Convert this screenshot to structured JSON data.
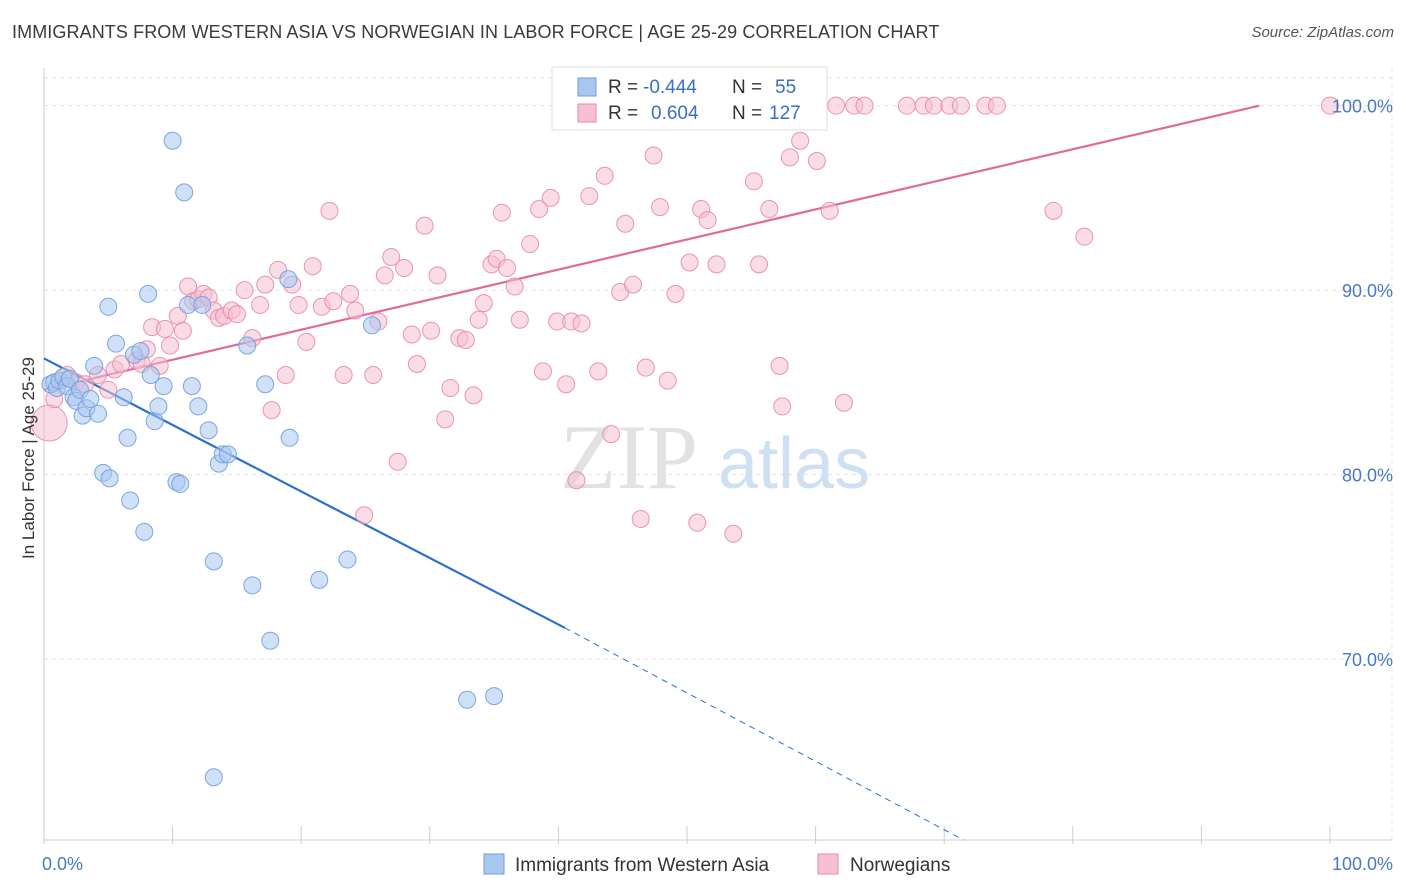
{
  "title": "IMMIGRANTS FROM WESTERN ASIA VS NORWEGIAN IN LABOR FORCE | AGE 25-29 CORRELATION CHART",
  "source": "Source: ZipAtlas.com",
  "watermark": {
    "zip": "ZIP",
    "atlas": "atlas"
  },
  "colors": {
    "blue_fill": "#a9c6ee",
    "blue_stroke": "#6f9fdc",
    "blue_line": "#2b6fd1",
    "pink_fill": "#f6c0d2",
    "pink_stroke": "#e88aab",
    "pink_line": "#e06b98",
    "grid": "#e3e3e3",
    "tick_text": "#4a78c2"
  },
  "chart_data": {
    "type": "scatter",
    "title": "IMMIGRANTS FROM WESTERN ASIA VS NORWEGIAN IN LABOR FORCE | AGE 25-29 CORRELATION CHART",
    "xlabel": "",
    "ylabel": "In Labor Force | Age 25-29",
    "xlim": [
      0,
      100
    ],
    "ylim": [
      60.2,
      101.5
    ],
    "x_ticks": [
      {
        "value": 0,
        "label": "0.0%"
      },
      {
        "value": 100,
        "label": "100.0%"
      }
    ],
    "y_ticks": [
      {
        "value": 70,
        "label": "70.0%"
      },
      {
        "value": 80,
        "label": "80.0%"
      },
      {
        "value": 90,
        "label": "90.0%"
      },
      {
        "value": 100,
        "label": "100.0%"
      }
    ],
    "grid": true,
    "legend_placement": "top-center",
    "legend": [
      {
        "series": "Immigrants from Western Asia",
        "r_label": "R =",
        "r_value": "-0.444",
        "n_label": "N =",
        "n_value": "55"
      },
      {
        "series": "Norwegians",
        "r_label": "R =",
        "r_value": "0.604",
        "n_label": "N =",
        "n_value": "127"
      }
    ],
    "series": [
      {
        "name": "Immigrants from Western Asia",
        "color": "blue",
        "trend": {
          "x0": 0,
          "y0": 86.3,
          "x1": 40.5,
          "y1": 71.7,
          "dash_to_x": 71.5,
          "dash_to_y": 60.2
        },
        "points": [
          [
            0.5,
            84.9
          ],
          [
            0.8,
            85.0
          ],
          [
            1.0,
            84.7
          ],
          [
            1.2,
            85.1
          ],
          [
            1.5,
            85.3
          ],
          [
            1.8,
            84.8
          ],
          [
            2.0,
            85.2
          ],
          [
            2.3,
            84.2
          ],
          [
            2.5,
            84.0
          ],
          [
            2.8,
            84.6
          ],
          [
            3.0,
            83.2
          ],
          [
            3.3,
            83.6
          ],
          [
            3.6,
            84.1
          ],
          [
            3.9,
            85.9
          ],
          [
            4.2,
            83.3
          ],
          [
            4.6,
            80.1
          ],
          [
            5.0,
            89.1
          ],
          [
            5.1,
            79.8
          ],
          [
            5.6,
            87.1
          ],
          [
            6.2,
            84.2
          ],
          [
            6.5,
            82.0
          ],
          [
            6.7,
            78.6
          ],
          [
            7.0,
            86.5
          ],
          [
            7.5,
            86.7
          ],
          [
            7.8,
            76.9
          ],
          [
            8.1,
            89.8
          ],
          [
            8.3,
            85.4
          ],
          [
            8.6,
            82.9
          ],
          [
            8.9,
            83.7
          ],
          [
            9.3,
            84.8
          ],
          [
            10.0,
            98.1
          ],
          [
            10.3,
            79.6
          ],
          [
            10.6,
            79.5
          ],
          [
            10.9,
            95.3
          ],
          [
            11.2,
            89.2
          ],
          [
            11.5,
            84.8
          ],
          [
            12.0,
            83.7
          ],
          [
            12.3,
            89.2
          ],
          [
            12.8,
            82.4
          ],
          [
            13.2,
            75.3
          ],
          [
            13.6,
            80.6
          ],
          [
            13.9,
            81.1
          ],
          [
            14.3,
            81.1
          ],
          [
            15.8,
            87.0
          ],
          [
            16.2,
            74.0
          ],
          [
            17.2,
            84.9
          ],
          [
            17.6,
            71.0
          ],
          [
            19.0,
            90.6
          ],
          [
            19.1,
            82.0
          ],
          [
            21.4,
            74.3
          ],
          [
            23.6,
            75.4
          ],
          [
            25.5,
            88.1
          ],
          [
            32.9,
            67.8
          ],
          [
            35.0,
            68.0
          ],
          [
            13.2,
            63.6
          ]
        ]
      },
      {
        "name": "Norwegians",
        "color": "pink",
        "trend": {
          "x0": 0,
          "y0": 84.6,
          "x1": 94.5,
          "y1": 100.0
        },
        "points": [
          [
            0.4,
            82.8
          ],
          [
            0.8,
            84.1
          ],
          [
            1.8,
            85.4
          ],
          [
            2.5,
            85.0
          ],
          [
            3.2,
            84.9
          ],
          [
            4.2,
            85.4
          ],
          [
            5.0,
            84.6
          ],
          [
            5.5,
            85.7
          ],
          [
            6.0,
            86.0
          ],
          [
            7.2,
            86.2
          ],
          [
            7.6,
            86.0
          ],
          [
            8.0,
            86.8
          ],
          [
            8.4,
            88.0
          ],
          [
            9.0,
            85.9
          ],
          [
            9.4,
            87.9
          ],
          [
            9.8,
            87.0
          ],
          [
            10.4,
            88.6
          ],
          [
            10.8,
            87.8
          ],
          [
            11.2,
            90.2
          ],
          [
            11.6,
            89.4
          ],
          [
            12.0,
            89.5
          ],
          [
            12.4,
            89.8
          ],
          [
            12.8,
            89.6
          ],
          [
            13.2,
            88.9
          ],
          [
            13.6,
            88.5
          ],
          [
            14.0,
            88.6
          ],
          [
            14.6,
            88.9
          ],
          [
            15.0,
            88.7
          ],
          [
            15.6,
            90.0
          ],
          [
            16.2,
            87.4
          ],
          [
            16.8,
            89.2
          ],
          [
            17.2,
            90.3
          ],
          [
            17.7,
            83.5
          ],
          [
            18.2,
            91.1
          ],
          [
            18.8,
            85.4
          ],
          [
            19.3,
            90.3
          ],
          [
            19.8,
            89.2
          ],
          [
            20.4,
            87.2
          ],
          [
            20.9,
            91.3
          ],
          [
            21.6,
            89.1
          ],
          [
            22.2,
            94.3
          ],
          [
            22.5,
            89.4
          ],
          [
            23.3,
            85.4
          ],
          [
            23.8,
            89.8
          ],
          [
            24.2,
            88.9
          ],
          [
            24.9,
            77.8
          ],
          [
            25.6,
            85.4
          ],
          [
            26.0,
            88.3
          ],
          [
            26.5,
            90.8
          ],
          [
            27.0,
            91.8
          ],
          [
            27.5,
            80.7
          ],
          [
            28.0,
            91.2
          ],
          [
            28.6,
            87.6
          ],
          [
            29.0,
            86.0
          ],
          [
            29.6,
            93.5
          ],
          [
            30.1,
            87.8
          ],
          [
            30.6,
            90.8
          ],
          [
            31.2,
            83.0
          ],
          [
            31.6,
            84.7
          ],
          [
            32.3,
            87.4
          ],
          [
            32.8,
            87.3
          ],
          [
            33.4,
            84.3
          ],
          [
            33.8,
            88.4
          ],
          [
            34.2,
            89.3
          ],
          [
            34.8,
            91.4
          ],
          [
            35.2,
            91.7
          ],
          [
            35.6,
            94.2
          ],
          [
            36.0,
            91.2
          ],
          [
            36.6,
            90.2
          ],
          [
            37.0,
            88.4
          ],
          [
            37.8,
            92.5
          ],
          [
            38.5,
            94.4
          ],
          [
            38.8,
            85.6
          ],
          [
            39.4,
            95.0
          ],
          [
            39.9,
            88.3
          ],
          [
            40.6,
            84.9
          ],
          [
            41.0,
            88.3
          ],
          [
            41.4,
            79.7
          ],
          [
            41.8,
            88.2
          ],
          [
            42.4,
            95.1
          ],
          [
            43.1,
            85.6
          ],
          [
            43.6,
            96.2
          ],
          [
            44.1,
            82.2
          ],
          [
            44.8,
            89.9
          ],
          [
            45.2,
            93.6
          ],
          [
            45.8,
            90.3
          ],
          [
            46.4,
            77.6
          ],
          [
            46.8,
            85.8
          ],
          [
            47.4,
            97.3
          ],
          [
            47.8,
            99.3
          ],
          [
            47.9,
            94.5
          ],
          [
            48.5,
            85.1
          ],
          [
            49.1,
            89.8
          ],
          [
            49.6,
            100.0
          ],
          [
            50.2,
            91.5
          ],
          [
            50.8,
            77.4
          ],
          [
            51.1,
            94.4
          ],
          [
            51.6,
            93.8
          ],
          [
            52.3,
            91.4
          ],
          [
            53.1,
            100.0
          ],
          [
            53.6,
            76.8
          ],
          [
            54.0,
            100.0
          ],
          [
            55.2,
            95.9
          ],
          [
            55.6,
            91.4
          ],
          [
            56.4,
            94.4
          ],
          [
            57.2,
            85.9
          ],
          [
            57.4,
            83.7
          ],
          [
            57.6,
            100.0
          ],
          [
            58.0,
            97.2
          ],
          [
            58.8,
            98.1
          ],
          [
            59.6,
            100.0
          ],
          [
            60.1,
            97.0
          ],
          [
            61.1,
            94.3
          ],
          [
            61.6,
            100.0
          ],
          [
            62.2,
            83.9
          ],
          [
            63.0,
            100.0
          ],
          [
            63.8,
            100.0
          ],
          [
            67.1,
            100.0
          ],
          [
            68.4,
            100.0
          ],
          [
            69.2,
            100.0
          ],
          [
            70.4,
            100.0
          ],
          [
            71.3,
            100.0
          ],
          [
            73.2,
            100.0
          ],
          [
            74.1,
            100.0
          ],
          [
            78.5,
            94.3
          ],
          [
            80.9,
            92.9
          ],
          [
            100.0,
            100.0
          ]
        ]
      }
    ]
  }
}
